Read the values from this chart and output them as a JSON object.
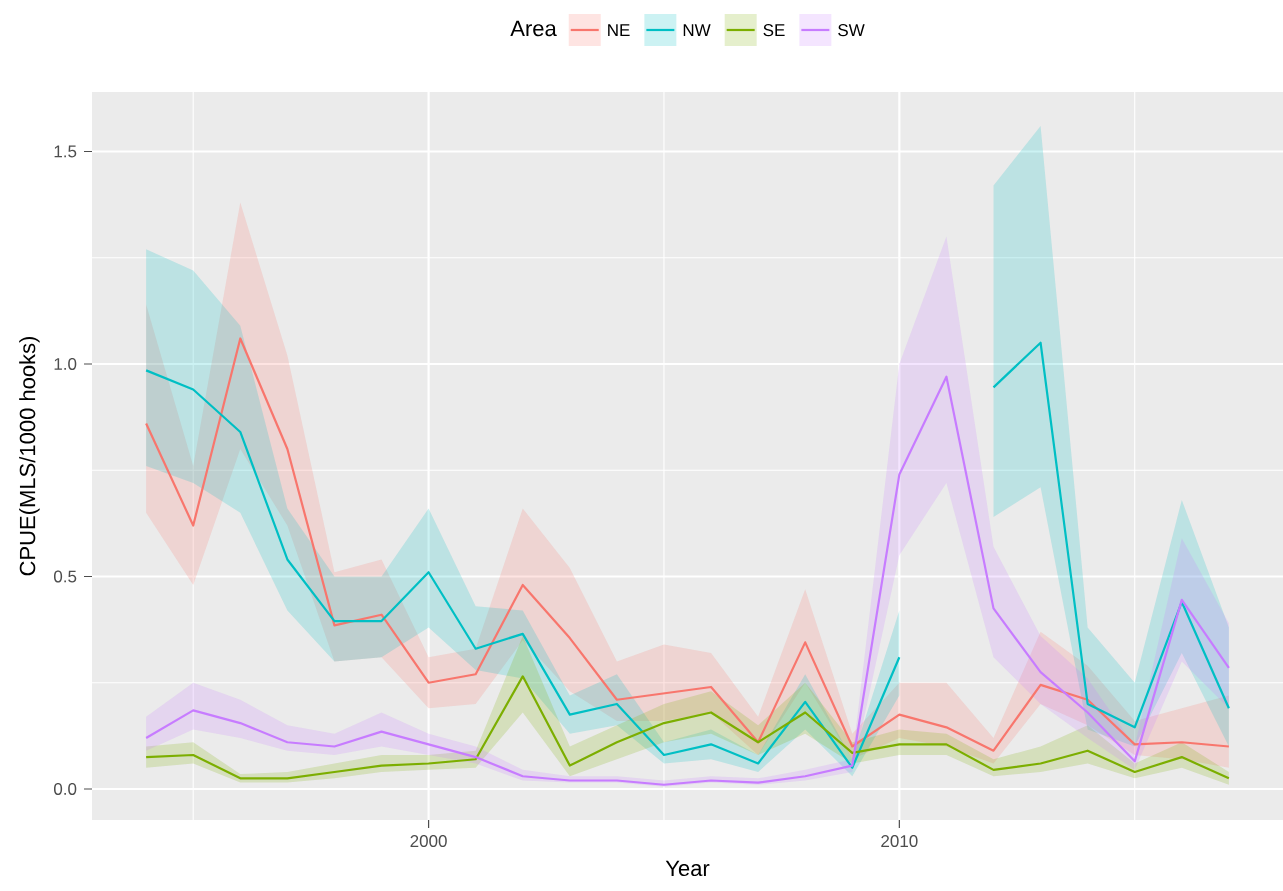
{
  "chart_data": {
    "type": "line",
    "xlabel": "Year",
    "ylabel": "CPUE(MLS/1000 hooks)",
    "legend_title": "Area",
    "legend": "top",
    "grid": true,
    "x": [
      1994,
      1995,
      1996,
      1997,
      1998,
      1999,
      2000,
      2001,
      2002,
      2003,
      2004,
      2005,
      2006,
      2007,
      2008,
      2009,
      2010,
      2011,
      2012,
      2013,
      2014,
      2015,
      2016,
      2017
    ],
    "xlim": [
      1992.85,
      2018.15
    ],
    "ylim": [
      -0.073,
      1.64
    ],
    "xticks": [
      2000,
      2010
    ],
    "yticks": [
      {
        "value": 0,
        "label": "0.0"
      },
      0.5,
      {
        "value": 1,
        "label": "1.0"
      },
      1.5
    ],
    "series": [
      {
        "name": "NE",
        "color": "#f8766d",
        "values": [
          0.86,
          0.62,
          1.06,
          0.8,
          0.385,
          0.41,
          0.25,
          0.27,
          0.48,
          0.355,
          0.21,
          0.225,
          0.24,
          0.11,
          0.345,
          0.1,
          0.175,
          0.145,
          0.09,
          0.245,
          0.21,
          0.105,
          0.11,
          0.1
        ],
        "lower": [
          0.65,
          0.48,
          0.8,
          0.62,
          0.3,
          0.31,
          0.19,
          0.2,
          0.35,
          0.23,
          0.16,
          0.16,
          0.18,
          0.08,
          0.25,
          0.07,
          0.12,
          0.1,
          0.06,
          0.2,
          0.15,
          0.08,
          0.07,
          0.05
        ],
        "upper": [
          1.14,
          0.76,
          1.38,
          1.02,
          0.51,
          0.54,
          0.31,
          0.33,
          0.66,
          0.52,
          0.3,
          0.34,
          0.32,
          0.17,
          0.47,
          0.13,
          0.25,
          0.25,
          0.12,
          0.37,
          0.29,
          0.16,
          0.19,
          0.22
        ]
      },
      {
        "name": "NW",
        "color": "#00bfc4",
        "values": [
          0.985,
          0.94,
          0.84,
          0.54,
          0.395,
          0.395,
          0.51,
          0.33,
          0.365,
          0.175,
          0.2,
          0.08,
          0.105,
          0.06,
          0.205,
          0.05,
          0.31,
          null,
          0.945,
          1.05,
          0.2,
          0.145,
          0.44,
          0.19
        ],
        "lower": [
          0.76,
          0.72,
          0.65,
          0.42,
          0.3,
          0.31,
          0.38,
          0.28,
          0.26,
          0.13,
          0.15,
          0.06,
          0.07,
          0.04,
          0.14,
          0.03,
          0.22,
          null,
          0.64,
          0.71,
          0.14,
          0.1,
          0.32,
          0.1
        ],
        "upper": [
          1.27,
          1.22,
          1.09,
          0.66,
          0.5,
          0.5,
          0.66,
          0.43,
          0.42,
          0.22,
          0.27,
          0.11,
          0.14,
          0.08,
          0.27,
          0.07,
          0.42,
          null,
          1.42,
          1.56,
          0.38,
          0.25,
          0.68,
          0.38
        ]
      },
      {
        "name": "SE",
        "color": "#7cae00",
        "values": [
          0.075,
          0.08,
          0.025,
          0.025,
          0.04,
          0.055,
          0.06,
          0.07,
          0.265,
          0.055,
          0.11,
          0.155,
          0.18,
          0.11,
          0.18,
          0.085,
          0.105,
          0.105,
          0.045,
          0.06,
          0.09,
          0.04,
          0.075,
          0.025
        ],
        "lower": [
          0.05,
          0.06,
          0.015,
          0.015,
          0.025,
          0.04,
          0.045,
          0.05,
          0.18,
          0.03,
          0.07,
          0.11,
          0.13,
          0.08,
          0.13,
          0.06,
          0.08,
          0.08,
          0.03,
          0.04,
          0.06,
          0.025,
          0.05,
          0.01
        ],
        "upper": [
          0.1,
          0.11,
          0.035,
          0.04,
          0.06,
          0.08,
          0.08,
          0.09,
          0.36,
          0.1,
          0.15,
          0.2,
          0.23,
          0.15,
          0.25,
          0.11,
          0.14,
          0.13,
          0.07,
          0.1,
          0.15,
          0.06,
          0.11,
          0.04
        ]
      },
      {
        "name": "SW",
        "color": "#c77cff",
        "values": [
          0.12,
          0.185,
          0.155,
          0.11,
          0.1,
          0.135,
          0.105,
          0.075,
          0.03,
          0.02,
          0.02,
          0.01,
          0.02,
          0.015,
          0.03,
          0.055,
          0.74,
          0.97,
          0.425,
          0.275,
          0.18,
          0.065,
          0.445,
          0.285
        ],
        "lower": [
          0.09,
          0.14,
          0.12,
          0.09,
          0.08,
          0.1,
          0.08,
          0.06,
          0.02,
          0.015,
          0.015,
          0.005,
          0.015,
          0.01,
          0.02,
          0.04,
          0.55,
          0.72,
          0.31,
          0.2,
          0.12,
          0.045,
          0.3,
          0.19
        ],
        "upper": [
          0.17,
          0.25,
          0.21,
          0.15,
          0.13,
          0.18,
          0.13,
          0.1,
          0.045,
          0.03,
          0.03,
          0.02,
          0.03,
          0.025,
          0.045,
          0.07,
          1.0,
          1.3,
          0.57,
          0.36,
          0.26,
          0.1,
          0.59,
          0.39
        ]
      }
    ]
  }
}
